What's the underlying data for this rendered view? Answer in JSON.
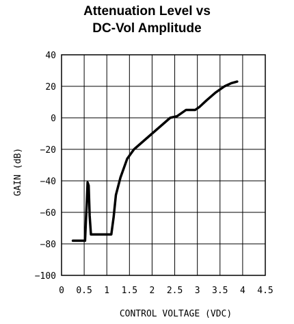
{
  "chart_data": {
    "type": "line",
    "title_lines": [
      "Attenuation Level vs",
      "DC-Vol Amplitude"
    ],
    "xlabel": "CONTROL VOLTAGE (VDC)",
    "ylabel": "GAIN (dB)",
    "xlim": [
      0,
      4.5
    ],
    "ylim": [
      -100,
      40
    ],
    "xticks": [
      "0",
      "0.5",
      "1",
      "1.5",
      "2",
      "2.5",
      "3",
      "3.5",
      "4",
      "4.5"
    ],
    "xtick_values": [
      0,
      0.5,
      1,
      1.5,
      2,
      2.5,
      3,
      3.5,
      4,
      4.5
    ],
    "yticks": [
      "40",
      "20",
      "0",
      "-20",
      "-40",
      "-60",
      "-80",
      "-100"
    ],
    "ytick_values": [
      40,
      20,
      0,
      -20,
      -40,
      -60,
      -80,
      -100
    ],
    "grid": true,
    "line_color": "#000000",
    "series": [
      {
        "x": [
          0.25,
          0.52,
          0.54,
          0.56,
          0.575,
          0.6,
          0.62,
          0.65,
          0.68,
          1.1,
          1.15,
          1.2,
          1.3,
          1.45,
          1.6,
          1.8,
          2.0,
          2.2,
          2.4,
          2.55,
          2.75,
          2.95,
          3.05,
          3.2,
          3.4,
          3.6,
          3.75,
          3.88
        ],
        "y": [
          -78,
          -78,
          -64,
          -52,
          -41,
          -43,
          -62,
          -74,
          -74,
          -74,
          -63,
          -49,
          -38,
          -26,
          -20,
          -15,
          -10,
          -5,
          0,
          1,
          5,
          5,
          7,
          11,
          16,
          20,
          22,
          23
        ]
      }
    ]
  }
}
